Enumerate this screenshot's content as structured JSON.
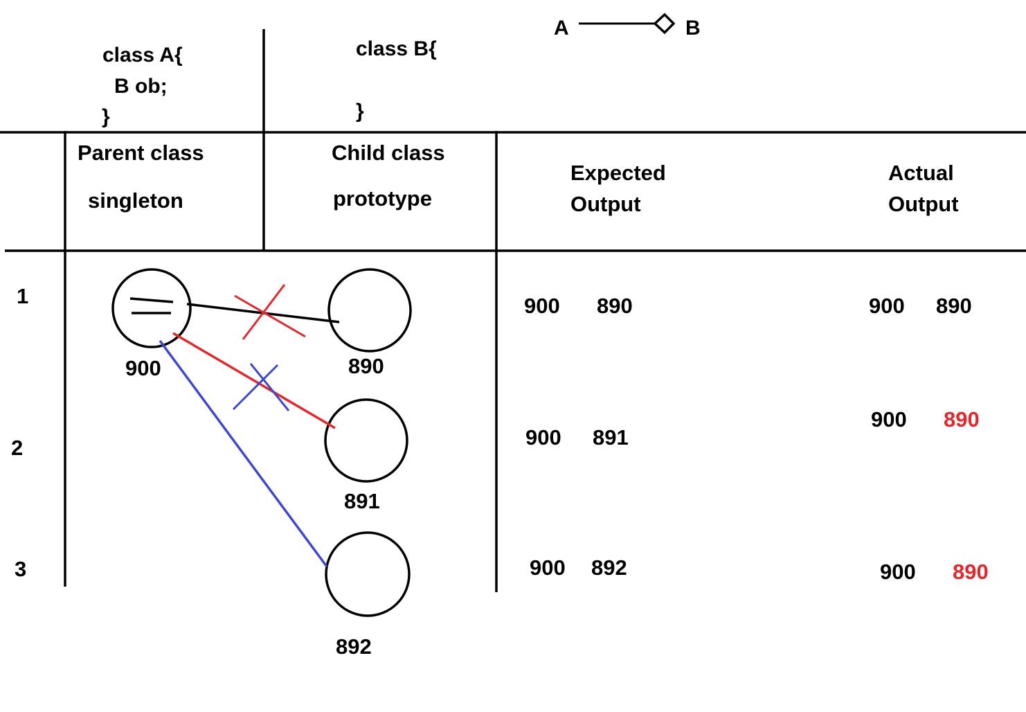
{
  "code": {
    "class_a": [
      "class A{",
      "B  ob;",
      "}"
    ],
    "class_b": [
      "class B{",
      "}"
    ]
  },
  "relation": {
    "from": "A",
    "to": "B",
    "symbol": "diamond"
  },
  "headers": {
    "parent": [
      "Parent class",
      "singleton"
    ],
    "child": [
      "Child class",
      "prototype"
    ],
    "expected": [
      "Expected",
      "Output"
    ],
    "actual": [
      "Actual",
      "Output"
    ]
  },
  "parent_object": {
    "id": "900"
  },
  "rows": [
    {
      "index": "1",
      "child_id": "890",
      "expected": [
        "900",
        "890"
      ],
      "actual": [
        "900",
        "890"
      ],
      "actual_mismatch": false
    },
    {
      "index": "2",
      "child_id": "891",
      "expected": [
        "900",
        "891"
      ],
      "actual": [
        "900",
        "890"
      ],
      "actual_mismatch": true
    },
    {
      "index": "3",
      "child_id": "892",
      "expected": [
        "900",
        "892"
      ],
      "actual": [
        "900",
        "890"
      ],
      "actual_mismatch": true
    }
  ],
  "colors": {
    "ink": "#000000",
    "red": "#e0282e",
    "blue": "#3f48cc",
    "mismatch": "#e0282e"
  }
}
